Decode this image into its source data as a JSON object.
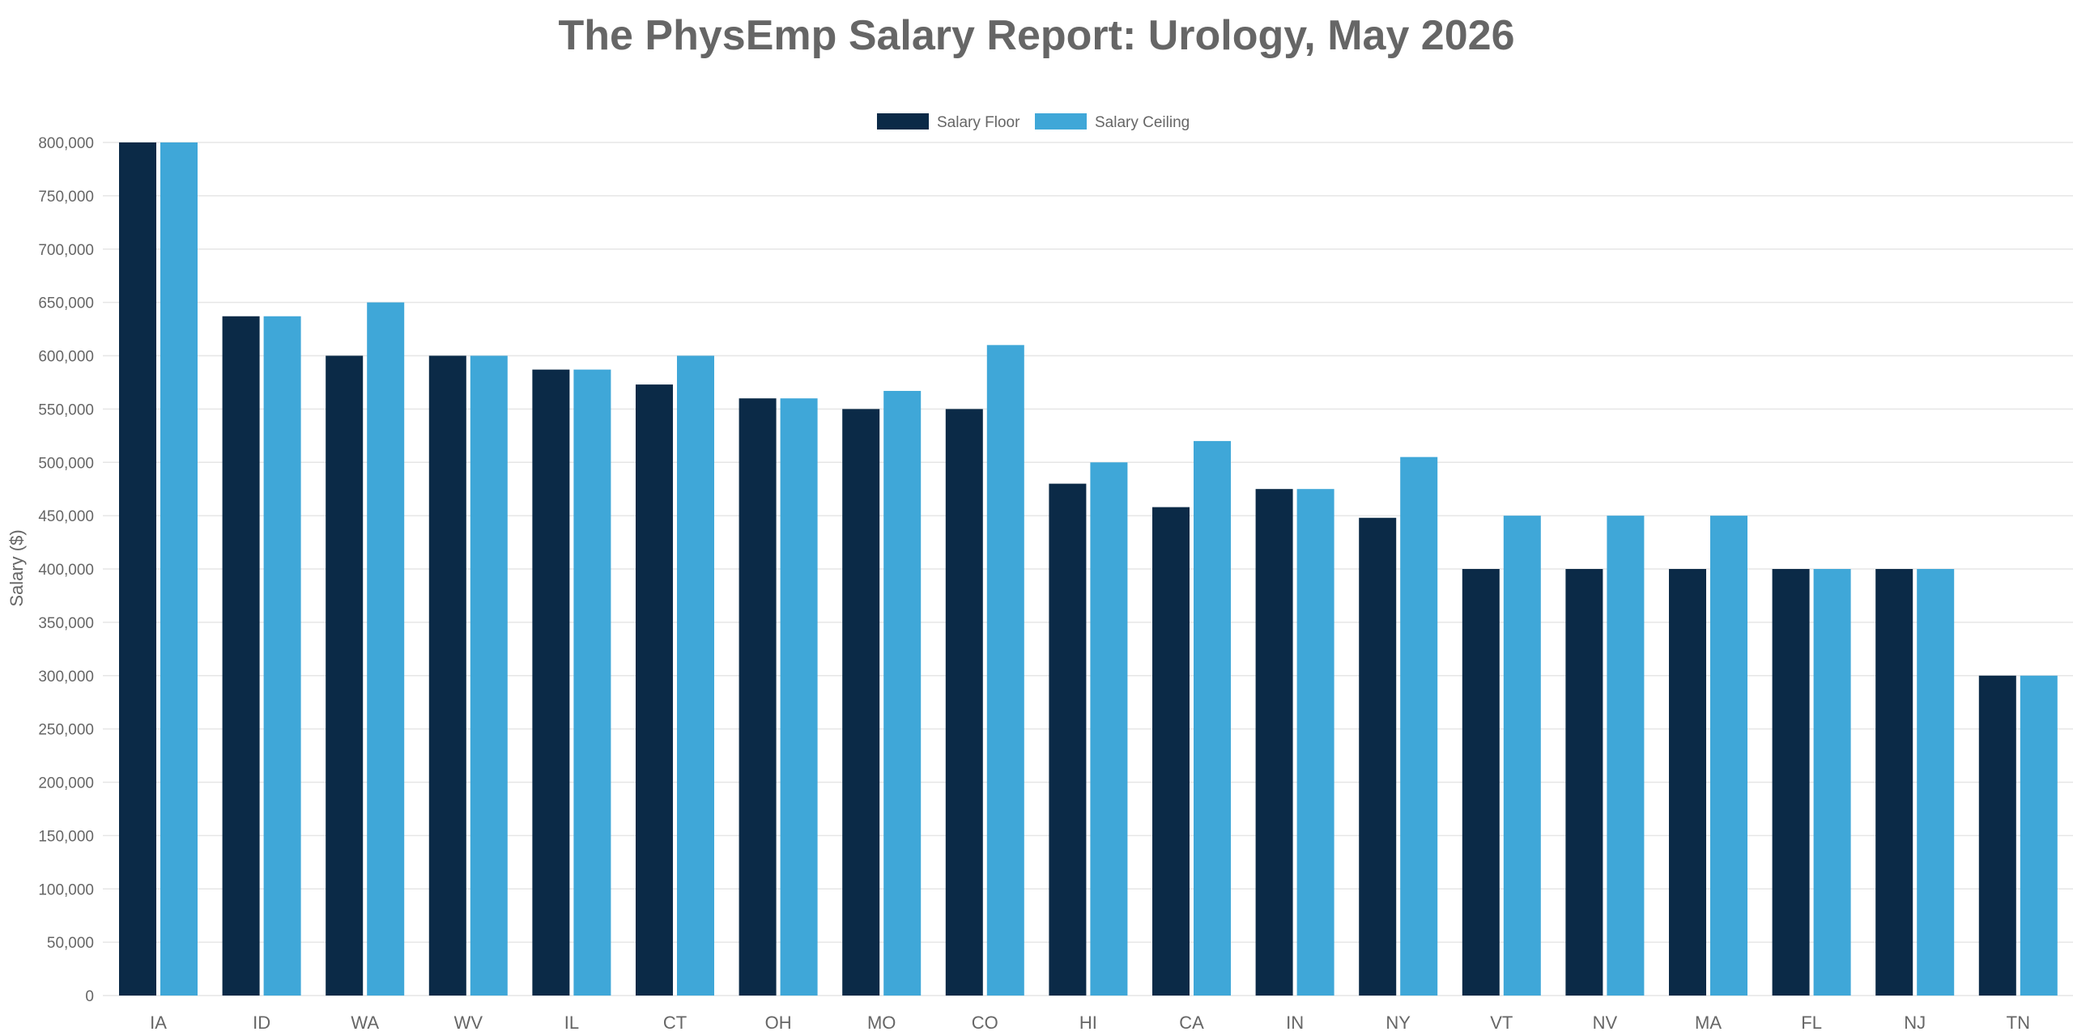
{
  "chart_data": {
    "type": "bar",
    "title": "The PhysEmp Salary Report: Urology, May 2026",
    "xlabel": "",
    "ylabel": "Salary ($)",
    "ylim": [
      0,
      800000
    ],
    "ytick_step": 50000,
    "grid": true,
    "legend_position": "top-center",
    "categories": [
      "IA",
      "ID",
      "WA",
      "WV",
      "IL",
      "CT",
      "OH",
      "MO",
      "CO",
      "HI",
      "CA",
      "IN",
      "NY",
      "VT",
      "NV",
      "MA",
      "FL",
      "NJ",
      "TN"
    ],
    "series": [
      {
        "name": "Salary Floor",
        "color": "#0b2a47",
        "values": [
          800000,
          637000,
          600000,
          600000,
          587000,
          573000,
          560000,
          550000,
          550000,
          480000,
          458000,
          475000,
          448000,
          400000,
          400000,
          400000,
          400000,
          400000,
          300000
        ]
      },
      {
        "name": "Salary Ceiling",
        "color": "#3fa7d8",
        "values": [
          800000,
          637000,
          650000,
          600000,
          587000,
          600000,
          560000,
          567000,
          610000,
          500000,
          520000,
          475000,
          505000,
          450000,
          450000,
          450000,
          400000,
          400000,
          300000
        ]
      }
    ]
  }
}
